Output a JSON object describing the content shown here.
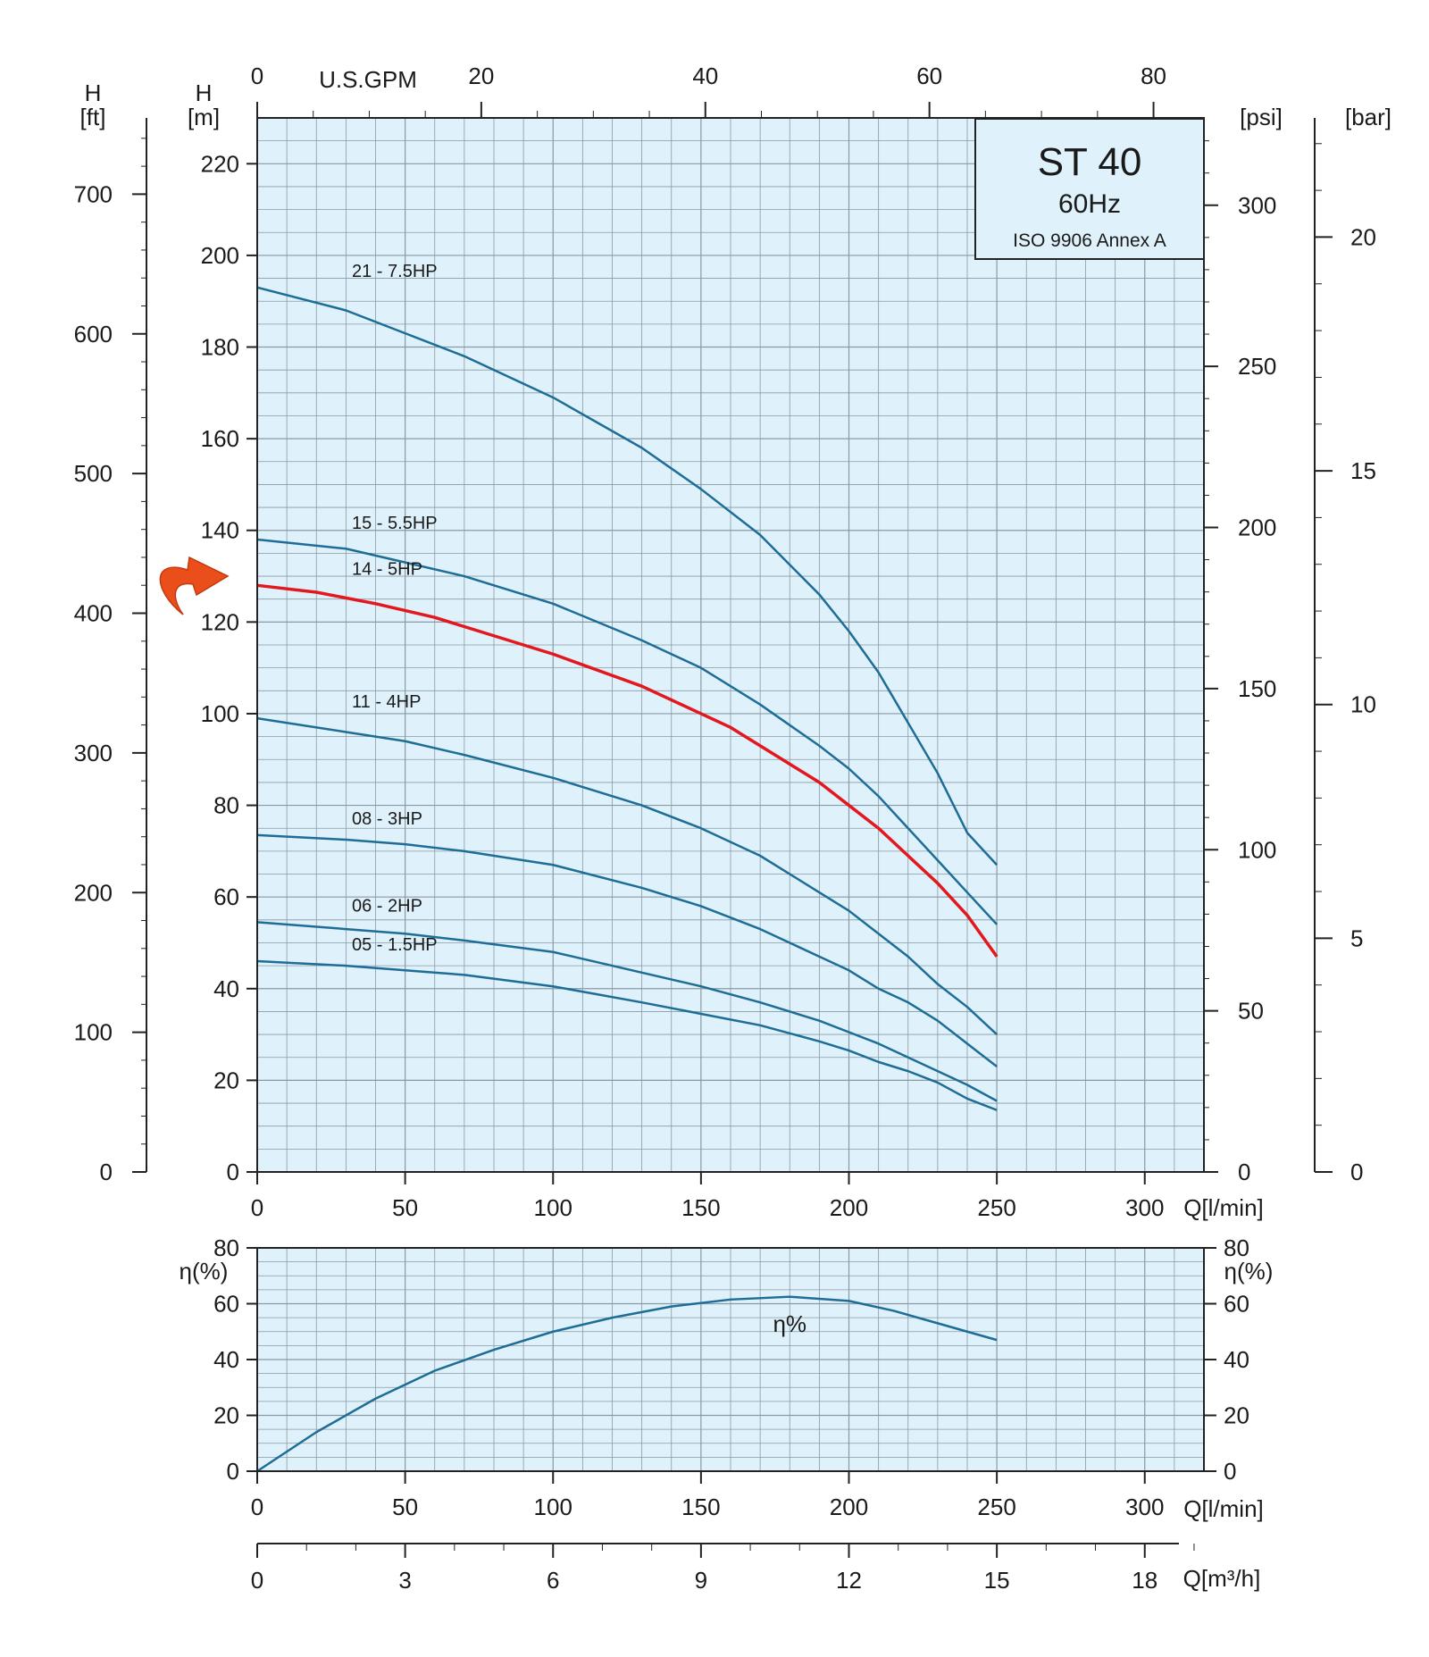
{
  "info_box": {
    "model": "ST 40",
    "frequency": "60Hz",
    "standard": "ISO 9906 Annex A"
  },
  "axis_labels": {
    "h_ft": [
      "H",
      "[ft]"
    ],
    "h_m": [
      "H",
      "[m]"
    ],
    "psi": "[psi]",
    "bar": "[bar]",
    "gpm": "U.S.GPM",
    "q_lmin": "Q[l/min]",
    "eta_left": "η(%)",
    "eta_right": "η(%)",
    "q_m3h": "Q[m³/h]"
  },
  "colors": {
    "plot_bg": "#dff1fa",
    "grid": "#8a9aa4",
    "curve": "#1d6d96",
    "highlight": "#e3181e",
    "arrow": "#e94e1b",
    "axis": "#222222"
  },
  "highlight_arrow": "curved-arrow-icon",
  "chart_data": [
    {
      "type": "line",
      "title": "",
      "xlabel": "Q[l/min]",
      "ylabel": "H [m]",
      "xlim": [
        0,
        320
      ],
      "ylim": [
        0,
        230
      ],
      "grid": true,
      "legend": "inline-labels",
      "x_ticks": [
        0,
        50,
        100,
        150,
        200,
        250,
        300
      ],
      "y_ticks": [
        0,
        20,
        40,
        60,
        80,
        100,
        120,
        140,
        160,
        180,
        200,
        220
      ],
      "secondary_axes": {
        "ft": {
          "ticks": [
            0,
            100,
            200,
            300,
            400,
            500,
            600,
            700
          ],
          "range": [
            0,
            754.6
          ]
        },
        "psi": {
          "ticks": [
            0,
            50,
            100,
            150,
            200,
            250,
            300
          ],
          "range": [
            0,
            327.1
          ]
        },
        "bar": {
          "ticks": [
            0,
            5,
            10,
            15,
            20
          ],
          "range": [
            0,
            22.55
          ]
        },
        "gpm": {
          "ticks": [
            0,
            20,
            40,
            60,
            80
          ],
          "range": [
            0,
            84.5
          ]
        }
      },
      "series": [
        {
          "name": "21 - 7.5HP",
          "highlight": false,
          "x": [
            0,
            30,
            50,
            70,
            100,
            130,
            150,
            170,
            190,
            200,
            210,
            220,
            230,
            240,
            250
          ],
          "y": [
            193,
            188,
            183,
            178,
            169,
            158,
            149,
            139,
            126,
            118,
            109,
            98,
            87,
            74,
            67
          ]
        },
        {
          "name": "15 - 5.5HP",
          "highlight": false,
          "x": [
            0,
            30,
            50,
            70,
            100,
            130,
            150,
            170,
            190,
            200,
            210,
            220,
            230,
            240,
            250
          ],
          "y": [
            138,
            136,
            133,
            130,
            124,
            116,
            110,
            102,
            93,
            88,
            82,
            75,
            68,
            61,
            54
          ]
        },
        {
          "name": "14 - 5HP",
          "highlight": true,
          "x": [
            0,
            20,
            40,
            60,
            80,
            100,
            130,
            150,
            160,
            170,
            180,
            190,
            200,
            210,
            220,
            230,
            240,
            250
          ],
          "y": [
            128,
            126.5,
            124,
            121,
            117,
            113,
            106,
            100,
            97,
            93,
            89,
            85,
            80,
            75,
            69,
            63,
            56,
            47
          ]
        },
        {
          "name": "11 - 4HP",
          "highlight": false,
          "x": [
            0,
            30,
            50,
            70,
            100,
            130,
            150,
            170,
            190,
            200,
            210,
            220,
            230,
            240,
            250
          ],
          "y": [
            99,
            96,
            94,
            91,
            86,
            80,
            75,
            69,
            61,
            57,
            52,
            47,
            41,
            36,
            30
          ]
        },
        {
          "name": "08 - 3HP",
          "highlight": false,
          "x": [
            0,
            30,
            50,
            70,
            100,
            130,
            150,
            170,
            190,
            200,
            210,
            220,
            230,
            240,
            250
          ],
          "y": [
            73.5,
            72.5,
            71.5,
            70,
            67,
            62,
            58,
            53,
            47,
            44,
            40,
            37,
            33,
            28,
            23
          ]
        },
        {
          "name": "06 - 2HP",
          "highlight": false,
          "x": [
            0,
            30,
            50,
            70,
            100,
            130,
            150,
            170,
            190,
            200,
            210,
            220,
            230,
            240,
            250
          ],
          "y": [
            54.5,
            53,
            52,
            50.5,
            48,
            43.5,
            40.5,
            37,
            33,
            30.5,
            28,
            25,
            22,
            19,
            15.5
          ]
        },
        {
          "name": "05 - 1.5HP",
          "highlight": false,
          "x": [
            0,
            30,
            50,
            70,
            100,
            130,
            150,
            170,
            190,
            200,
            210,
            220,
            230,
            240,
            250
          ],
          "y": [
            46,
            45,
            44,
            43,
            40.5,
            37,
            34.5,
            32,
            28.5,
            26.5,
            24,
            22,
            19.5,
            16,
            13.5
          ]
        }
      ]
    },
    {
      "type": "line",
      "title": "",
      "xlabel": "Q[l/min]",
      "ylabel": "η(%)",
      "xlim": [
        0,
        320
      ],
      "ylim": [
        0,
        80
      ],
      "grid": true,
      "x_ticks": [
        0,
        50,
        100,
        150,
        200,
        250,
        300
      ],
      "y_ticks": [
        0,
        20,
        40,
        60,
        80
      ],
      "secondary_x_axis": {
        "label": "Q[m³/h]",
        "ticks": [
          0,
          3,
          6,
          9,
          12,
          15,
          18
        ],
        "range": [
          0,
          19.2
        ]
      },
      "series": [
        {
          "name": "η%",
          "x": [
            0,
            20,
            40,
            60,
            80,
            100,
            120,
            140,
            160,
            180,
            200,
            215,
            230,
            250
          ],
          "y": [
            0,
            14,
            26,
            36,
            43.5,
            50,
            55,
            59,
            61.5,
            62.5,
            61,
            57.5,
            53,
            47
          ]
        }
      ]
    }
  ]
}
